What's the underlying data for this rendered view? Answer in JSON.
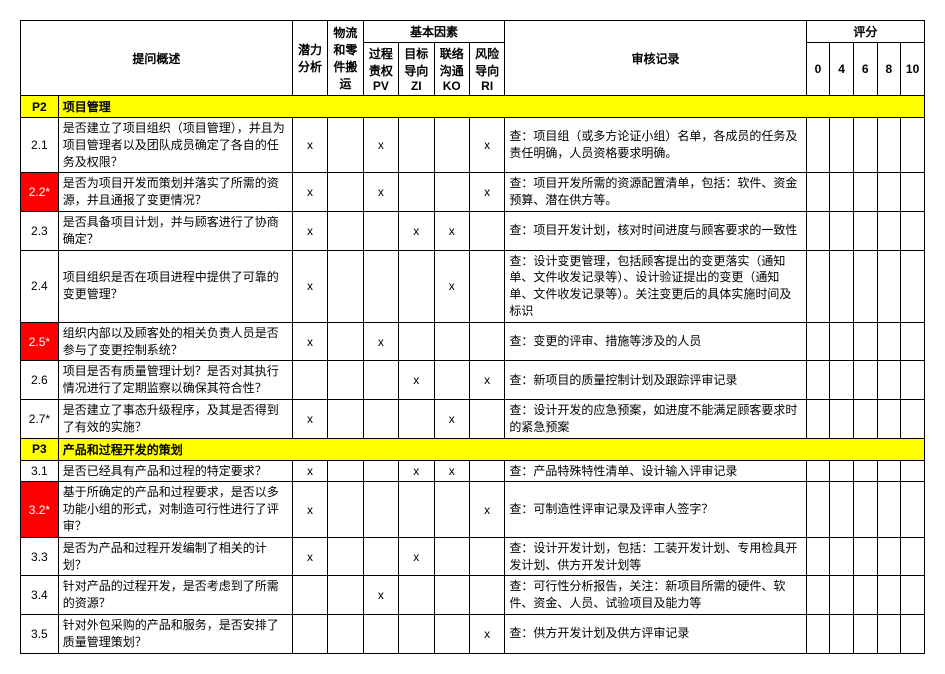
{
  "headers": {
    "question_overview": "提问概述",
    "potential_analysis": "潜力分析",
    "logistics": "物流和零件搬运",
    "basic_factors": "基本因素",
    "pv": "过程责权 PV",
    "zi": "目标导向 ZI",
    "ko": "联络沟通 KO",
    "ri": "风险导向 RI",
    "audit_record": "审核记录",
    "scoring": "评分",
    "s0": "0",
    "s4": "4",
    "s6": "6",
    "s8": "8",
    "s10": "10"
  },
  "sections": [
    {
      "code": "P2",
      "title": "项目管理",
      "rows": [
        {
          "id": "2.1",
          "red": false,
          "question": "是否建立了项目组织（项目管理），并且为项目管理者以及团队成员确定了各自的任务及权限？",
          "pot": "x",
          "log": "",
          "pv": "x",
          "zi": "",
          "ko": "",
          "ri": "x",
          "audit": "查：项目组（或多方论证小组）名单，各成员的任务及责任明确，人员资格要求明确。"
        },
        {
          "id": "2.2*",
          "red": true,
          "question": "是否为项目开发而策划并落实了所需的资源，并且通报了变更情况？",
          "pot": "x",
          "log": "",
          "pv": "x",
          "zi": "",
          "ko": "",
          "ri": "x",
          "audit": "查：项目开发所需的资源配置清单，包括：软件、资金预算、潜在供方等。"
        },
        {
          "id": "2.3",
          "red": false,
          "question": "是否具备项目计划，并与顾客进行了协商确定？",
          "pot": "x",
          "log": "",
          "pv": "",
          "zi": "x",
          "ko": "x",
          "ri": "",
          "audit": "查：项目开发计划，核对时间进度与顾客要求的一致性"
        },
        {
          "id": "2.4",
          "red": false,
          "question": "项目组织是否在项目进程中提供了可靠的变更管理？",
          "pot": "x",
          "log": "",
          "pv": "",
          "zi": "",
          "ko": "x",
          "ri": "",
          "audit": "查：设计变更管理，包括顾客提出的变更落实（通知单、文件收发记录等）、设计验证提出的变更（通知单、文件收发记录等）。关注变更后的具体实施时间及标识"
        },
        {
          "id": "2.5*",
          "red": true,
          "question": "组织内部以及顾客处的相关负责人员是否参与了变更控制系统？",
          "pot": "x",
          "log": "",
          "pv": "x",
          "zi": "",
          "ko": "",
          "ri": "",
          "audit": "查：变更的评审、措施等涉及的人员"
        },
        {
          "id": "2.6",
          "red": false,
          "question": "项目是否有质量管理计划？是否对其执行情况进行了定期监察以确保其符合性？",
          "pot": "",
          "log": "",
          "pv": "",
          "zi": "x",
          "ko": "",
          "ri": "x",
          "audit": "查：新项目的质量控制计划及跟踪评审记录"
        },
        {
          "id": "2.7*",
          "red": false,
          "question": "是否建立了事态升级程序，及其是否得到了有效的实施？",
          "pot": "x",
          "log": "",
          "pv": "",
          "zi": "",
          "ko": "x",
          "ri": "",
          "audit": "查：设计开发的应急预案，如进度不能满足顾客要求时的紧急预案"
        }
      ]
    },
    {
      "code": "P3",
      "title": "产品和过程开发的策划",
      "rows": [
        {
          "id": "3.1",
          "red": false,
          "question": "是否已经具有产品和过程的特定要求？",
          "pot": "x",
          "log": "",
          "pv": "",
          "zi": "x",
          "ko": "x",
          "ri": "",
          "audit": "查：产品特殊特性清单、设计输入评审记录"
        },
        {
          "id": "3.2*",
          "red": true,
          "question": "基于所确定的产品和过程要求，是否以多功能小组的形式，对制造可行性进行了评审？",
          "pot": "x",
          "log": "",
          "pv": "",
          "zi": "",
          "ko": "",
          "ri": "x",
          "audit": "查：可制造性评审记录及评审人签字？"
        },
        {
          "id": "3.3",
          "red": false,
          "question": "是否为产品和过程开发编制了相关的计划？",
          "pot": "x",
          "log": "",
          "pv": "",
          "zi": "x",
          "ko": "",
          "ri": "",
          "audit": "查：设计开发计划，包括：工装开发计划、专用检具开发计划、供方开发计划等"
        },
        {
          "id": "3.4",
          "red": false,
          "question": "针对产品的过程开发，是否考虑到了所需的资源？",
          "pot": "",
          "log": "",
          "pv": "x",
          "zi": "",
          "ko": "",
          "ri": "",
          "audit": "查：可行性分析报告，关注：新项目所需的硬件、软件、资金、人员、试验项目及能力等"
        },
        {
          "id": "3.5",
          "red": false,
          "question": "针对外包采购的产品和服务，是否安排了质量管理策划？",
          "pot": "",
          "log": "",
          "pv": "",
          "zi": "",
          "ko": "",
          "ri": "x",
          "audit": "查：供方开发计划及供方评审记录"
        }
      ]
    }
  ]
}
